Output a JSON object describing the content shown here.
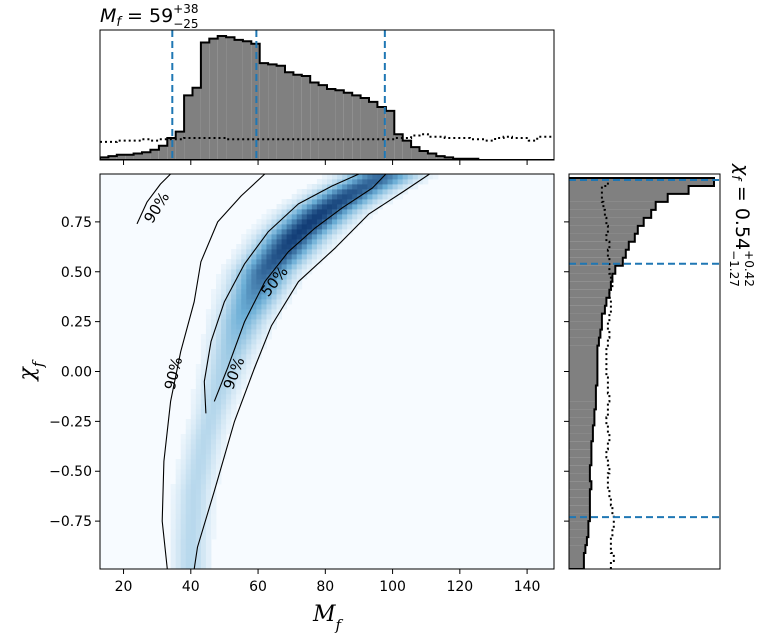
{
  "chart_data": [
    {
      "type": "heatmap",
      "panel": "joint",
      "xlabel": "M_f",
      "ylabel": "χ_f",
      "xlim": [
        13,
        148
      ],
      "ylim": [
        -0.99,
        0.99
      ],
      "xticks": [
        "20",
        "40",
        "60",
        "80",
        "100",
        "120",
        "140"
      ],
      "yticks": [
        "−0.75",
        "−0.50",
        "−0.25",
        "0.00",
        "0.25",
        "0.50",
        "0.75"
      ],
      "colormap": "Blues",
      "density_ridge": [
        {
          "x": 40,
          "y": -0.85
        },
        {
          "x": 41,
          "y": -0.6
        },
        {
          "x": 44,
          "y": -0.35
        },
        {
          "x": 49,
          "y": -0.05
        },
        {
          "x": 55,
          "y": 0.25
        },
        {
          "x": 62,
          "y": 0.5
        },
        {
          "x": 71,
          "y": 0.68
        },
        {
          "x": 79,
          "y": 0.8
        },
        {
          "x": 88,
          "y": 0.9
        },
        {
          "x": 96,
          "y": 0.97
        }
      ],
      "peak": {
        "x": 74,
        "y": 0.73
      },
      "contours": [
        {
          "level": "50%",
          "points": [
            [
              44.5,
              -0.21
            ],
            [
              44,
              -0.05
            ],
            [
              46,
              0.15
            ],
            [
              50,
              0.35
            ],
            [
              56,
              0.54
            ],
            [
              63,
              0.7
            ],
            [
              72,
              0.84
            ],
            [
              82,
              0.93
            ],
            [
              90,
              0.99
            ],
            [
              98,
              0.99
            ],
            [
              94,
              0.92
            ],
            [
              85,
              0.82
            ],
            [
              77,
              0.72
            ],
            [
              69,
              0.6
            ],
            [
              62,
              0.45
            ],
            [
              56,
              0.25
            ],
            [
              51,
              0.02
            ],
            [
              47,
              -0.15
            ]
          ]
        },
        {
          "level": "90%",
          "points": [
            [
              33,
              -0.99
            ],
            [
              31.5,
              -0.75
            ],
            [
              32,
              -0.45
            ],
            [
              34,
              -0.15
            ],
            [
              37,
              0.1
            ],
            [
              41,
              0.35
            ],
            [
              43,
              0.55
            ],
            [
              48,
              0.75
            ],
            [
              55,
              0.88
            ],
            [
              62,
              0.99
            ],
            [
              111,
              0.99
            ],
            [
              103,
              0.9
            ],
            [
              93,
              0.79
            ],
            [
              83,
              0.62
            ],
            [
              72,
              0.45
            ],
            [
              64,
              0.23
            ],
            [
              59,
              0.02
            ],
            [
              53,
              -0.25
            ],
            [
              47,
              -0.6
            ],
            [
              42,
              -0.88
            ],
            [
              41,
              -0.99
            ]
          ]
        },
        {
          "level": "90%",
          "points": [
            [
              24,
              0.74
            ],
            [
              27,
              0.85
            ],
            [
              31,
              0.94
            ],
            [
              34,
              0.99
            ],
            [
              35,
              0.99
            ]
          ]
        }
      ],
      "contour_labels": [
        {
          "text": "90%",
          "x": 30,
          "y": 0.82,
          "angle": -58
        },
        {
          "text": "50%",
          "x": 65,
          "y": 0.45,
          "angle": -52
        },
        {
          "text": "90%",
          "x": 35,
          "y": -0.01,
          "angle": -76
        },
        {
          "text": "90%",
          "x": 53,
          "y": -0.01,
          "angle": -69
        }
      ]
    },
    {
      "type": "bar",
      "panel": "marginal-x",
      "title": "M_f = 59^{+38}_{−25}",
      "bin_edges": [
        13,
        15.5,
        18,
        20.5,
        23,
        25.5,
        28,
        30.5,
        33,
        35.5,
        38,
        40.5,
        43,
        45.5,
        48,
        50.5,
        53,
        55.5,
        58,
        60.5,
        63,
        65.5,
        68,
        70.5,
        73,
        75.5,
        78,
        80.5,
        83,
        85.5,
        88,
        90.5,
        93,
        95.5,
        98,
        100.5,
        103,
        105.5,
        108,
        110.5,
        113,
        115.5,
        118,
        120.5,
        123,
        125.5,
        128,
        130.5,
        133,
        135.5,
        138,
        140.5,
        143,
        145.5,
        148
      ],
      "posterior": [
        0.02,
        0.03,
        0.04,
        0.04,
        0.05,
        0.06,
        0.08,
        0.11,
        0.17,
        0.22,
        0.5,
        0.56,
        0.91,
        0.94,
        0.96,
        0.95,
        0.93,
        0.92,
        0.9,
        0.75,
        0.74,
        0.73,
        0.68,
        0.66,
        0.65,
        0.6,
        0.58,
        0.55,
        0.54,
        0.52,
        0.5,
        0.48,
        0.45,
        0.41,
        0.38,
        0.2,
        0.15,
        0.1,
        0.07,
        0.05,
        0.03,
        0.02,
        0.01,
        0.01,
        0.01,
        0.0,
        0.0,
        0.0,
        0.0,
        0.0,
        0.0,
        0.0,
        0.0,
        0.0
      ],
      "prior": [
        0.14,
        0.14,
        0.15,
        0.15,
        0.15,
        0.16,
        0.15,
        0.16,
        0.16,
        0.16,
        0.17,
        0.17,
        0.17,
        0.17,
        0.17,
        0.16,
        0.16,
        0.16,
        0.16,
        0.16,
        0.16,
        0.16,
        0.16,
        0.16,
        0.16,
        0.16,
        0.16,
        0.16,
        0.16,
        0.16,
        0.16,
        0.16,
        0.16,
        0.16,
        0.16,
        0.17,
        0.17,
        0.19,
        0.2,
        0.18,
        0.18,
        0.17,
        0.17,
        0.17,
        0.16,
        0.16,
        0.15,
        0.17,
        0.18,
        0.17,
        0.17,
        0.15,
        0.18,
        0.18
      ],
      "quantile_lines": [
        34.5,
        59.5,
        97.7
      ]
    },
    {
      "type": "bar",
      "panel": "marginal-y",
      "title": "χ_f = 0.54^{+0.42}_{−1.27}",
      "bin_edges": [
        -0.99,
        -0.95,
        -0.91,
        -0.87,
        -0.83,
        -0.79,
        -0.75,
        -0.71,
        -0.67,
        -0.63,
        -0.59,
        -0.55,
        -0.51,
        -0.47,
        -0.43,
        -0.39,
        -0.35,
        -0.31,
        -0.27,
        -0.23,
        -0.19,
        -0.15,
        -0.11,
        -0.07,
        -0.03,
        0.01,
        0.05,
        0.09,
        0.13,
        0.17,
        0.21,
        0.25,
        0.29,
        0.33,
        0.37,
        0.41,
        0.45,
        0.49,
        0.53,
        0.57,
        0.61,
        0.65,
        0.69,
        0.73,
        0.77,
        0.81,
        0.85,
        0.89,
        0.93,
        0.97
      ],
      "posterior": [
        0.1,
        0.1,
        0.11,
        0.12,
        0.13,
        0.13,
        0.14,
        0.14,
        0.14,
        0.14,
        0.15,
        0.14,
        0.14,
        0.15,
        0.15,
        0.15,
        0.16,
        0.16,
        0.17,
        0.17,
        0.18,
        0.18,
        0.18,
        0.19,
        0.19,
        0.19,
        0.19,
        0.19,
        0.2,
        0.21,
        0.22,
        0.22,
        0.24,
        0.25,
        0.27,
        0.28,
        0.29,
        0.31,
        0.36,
        0.38,
        0.4,
        0.44,
        0.46,
        0.5,
        0.55,
        0.58,
        0.66,
        0.8,
        0.97
      ],
      "prior": [
        0.28,
        0.3,
        0.28,
        0.28,
        0.29,
        0.3,
        0.3,
        0.29,
        0.28,
        0.27,
        0.26,
        0.26,
        0.27,
        0.26,
        0.25,
        0.26,
        0.27,
        0.26,
        0.25,
        0.26,
        0.26,
        0.27,
        0.26,
        0.26,
        0.25,
        0.25,
        0.25,
        0.25,
        0.26,
        0.27,
        0.26,
        0.27,
        0.28,
        0.28,
        0.27,
        0.29,
        0.28,
        0.27,
        0.27,
        0.26,
        0.27,
        0.25,
        0.26,
        0.25,
        0.24,
        0.23,
        0.22,
        0.22,
        0.26
      ],
      "quantile_lines": [
        -0.73,
        0.54,
        0.96
      ]
    }
  ],
  "colors": {
    "histogram_fill": "#808080",
    "quantile_line": "#1f77b4",
    "heatmap_low": "#f7fbff",
    "heatmap_high": "#08306b"
  }
}
